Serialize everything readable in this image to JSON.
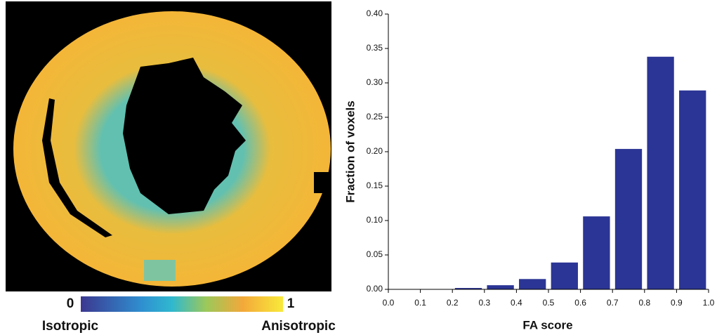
{
  "chart_data": {
    "type": "histogram",
    "xlabel": "FA score",
    "ylabel": "Fraction of voxels",
    "bins": [
      0,
      0.1,
      0.2,
      0.3,
      0.4,
      0.5,
      0.6,
      0.7,
      0.8,
      0.9,
      1
    ],
    "values": [
      0,
      0,
      0.002,
      0.006,
      0.015,
      0.039,
      0.106,
      0.204,
      0.338,
      0.289
    ],
    "color": "#2b3595",
    "xlim": [
      0,
      1
    ],
    "xticks": [
      {
        "value": 0,
        "label": "0.0"
      },
      0.1,
      0.2,
      0.3,
      0.4,
      0.5,
      0.6,
      0.7,
      0.8,
      0.9,
      {
        "value": 1,
        "label": "1.0"
      }
    ],
    "ylim": [
      0,
      0.4
    ],
    "yticks": [
      {
        "value": 0,
        "label": "0.00"
      },
      0.05,
      {
        "value": 0.1,
        "label": "0.10"
      },
      0.15,
      {
        "value": 0.2,
        "label": "0.20"
      },
      0.25,
      {
        "value": 0.3,
        "label": "0.30"
      },
      0.35,
      {
        "value": 0.4,
        "label": "0.40"
      }
    ]
  },
  "colorbar": {
    "range": [
      0,
      1
    ],
    "low_label": "Isotropic",
    "high_label": "Anisotropic"
  }
}
